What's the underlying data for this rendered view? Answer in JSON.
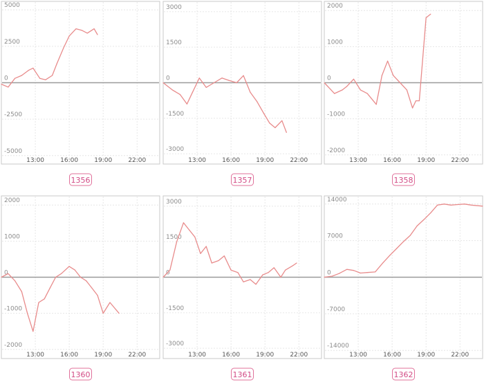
{
  "chart_data": [
    {
      "type": "line",
      "title": "1356",
      "ylim": [
        -5200,
        5200
      ],
      "yticks": [
        5000,
        2500,
        0,
        -2500,
        -5000
      ],
      "ytick_labels": [
        "5000",
        "2500",
        "0",
        "-2500",
        "-5000"
      ],
      "xlim": [
        10.0,
        24.0
      ],
      "xticks": [
        13,
        16,
        19,
        22
      ],
      "xtick_labels": [
        "13:00",
        "16:00",
        "19:00",
        "22:00"
      ],
      "grid": true,
      "series_color": "#e88b8b",
      "x": [
        10.0,
        10.6,
        11.2,
        11.8,
        12.4,
        12.8,
        13.4,
        13.9,
        14.5,
        14.9,
        15.5,
        16.0,
        16.6,
        17.1,
        17.6,
        18.2,
        18.5
      ],
      "values": [
        -100,
        -300,
        300,
        500,
        850,
        1000,
        300,
        200,
        500,
        1300,
        2400,
        3200,
        3700,
        3600,
        3400,
        3700,
        3300
      ]
    },
    {
      "type": "line",
      "title": "1357",
      "ylim": [
        -3200,
        3200
      ],
      "yticks": [
        3000,
        1500,
        0,
        -1500,
        -3000
      ],
      "ytick_labels": [
        "3000",
        "1500",
        "0",
        "-1500",
        "-3000"
      ],
      "xlim": [
        10.0,
        24.0
      ],
      "xticks": [
        13,
        16,
        19,
        22
      ],
      "xtick_labels": [
        "13:00",
        "16:00",
        "19:00",
        "22:00"
      ],
      "grid": true,
      "series_color": "#e88b8b",
      "x": [
        10.0,
        10.8,
        11.5,
        12.1,
        12.6,
        13.2,
        13.8,
        14.5,
        15.2,
        15.8,
        16.5,
        17.1,
        17.7,
        18.3,
        18.9,
        19.4,
        19.9,
        20.5,
        20.9
      ],
      "values": [
        0,
        -300,
        -500,
        -900,
        -400,
        200,
        -200,
        0,
        200,
        100,
        0,
        300,
        -400,
        -800,
        -1300,
        -1700,
        -1900,
        -1600,
        -2100
      ]
    },
    {
      "type": "line",
      "title": "1358",
      "ylim": [
        -2100,
        2100
      ],
      "yticks": [
        2000,
        1000,
        0,
        -1000,
        -2000
      ],
      "ytick_labels": [
        "2000",
        "1000",
        "0",
        "-1000",
        "-2000"
      ],
      "xlim": [
        10.0,
        24.0
      ],
      "xticks": [
        13,
        16,
        19,
        22
      ],
      "xtick_labels": [
        "13:00",
        "16:00",
        "19:00",
        "22:00"
      ],
      "grid": true,
      "series_color": "#e88b8b",
      "x": [
        10.0,
        10.9,
        11.6,
        12.0,
        12.6,
        13.2,
        13.8,
        14.6,
        15.1,
        15.6,
        16.1,
        16.7,
        17.3,
        17.8,
        18.1,
        18.4,
        19.0,
        19.4
      ],
      "values": [
        0,
        -300,
        -200,
        -100,
        100,
        -200,
        -300,
        -600,
        200,
        600,
        200,
        0,
        -200,
        -700,
        -500,
        -500,
        1800,
        1900
      ]
    },
    {
      "type": "line",
      "title": "1360",
      "ylim": [
        -2100,
        2100
      ],
      "yticks": [
        2000,
        1000,
        0,
        -1000,
        -2000
      ],
      "ytick_labels": [
        "2000",
        "1000",
        "0",
        "-1000",
        "-2000"
      ],
      "xlim": [
        10.0,
        24.0
      ],
      "xticks": [
        13,
        16,
        19,
        22
      ],
      "xtick_labels": [
        "13:00",
        "16:00",
        "19:00",
        "22:00"
      ],
      "grid": true,
      "series_color": "#e88b8b",
      "x": [
        10.0,
        10.6,
        11.2,
        11.8,
        12.3,
        12.8,
        13.3,
        13.8,
        14.3,
        14.8,
        15.3,
        16.0,
        16.5,
        17.0,
        17.5,
        18.0,
        18.5,
        19.0,
        19.6,
        20.4
      ],
      "values": [
        0,
        100,
        -100,
        -400,
        -1000,
        -1500,
        -700,
        -600,
        -300,
        0,
        100,
        300,
        200,
        0,
        -100,
        -300,
        -500,
        -1000,
        -700,
        -1000
      ]
    },
    {
      "type": "line",
      "title": "1361",
      "ylim": [
        -3200,
        3200
      ],
      "yticks": [
        3000,
        1500,
        0,
        -1500,
        -3000
      ],
      "ytick_labels": [
        "3000",
        "1500",
        "0",
        "-1500",
        "-3000"
      ],
      "xlim": [
        10.0,
        24.0
      ],
      "xticks": [
        13,
        16,
        19,
        22
      ],
      "xtick_labels": [
        "13:00",
        "16:00",
        "19:00",
        "22:00"
      ],
      "grid": true,
      "series_color": "#e88b8b",
      "x": [
        10.0,
        10.6,
        11.2,
        11.8,
        12.3,
        12.8,
        13.3,
        13.8,
        14.3,
        14.9,
        15.4,
        16.0,
        16.6,
        17.1,
        17.7,
        18.2,
        18.8,
        19.3,
        19.8,
        20.4,
        20.8,
        21.5,
        21.8
      ],
      "values": [
        0,
        300,
        1500,
        2300,
        2000,
        1700,
        1000,
        1300,
        600,
        700,
        900,
        300,
        200,
        -200,
        -100,
        -300,
        100,
        200,
        400,
        0,
        300,
        500,
        600
      ]
    },
    {
      "type": "line",
      "title": "1362",
      "ylim": [
        -14500,
        14500
      ],
      "yticks": [
        14000,
        7000,
        0,
        -7000,
        -14000
      ],
      "ytick_labels": [
        "14000",
        "7000",
        "0",
        "-7000",
        "-14000"
      ],
      "xlim": [
        10.0,
        24.0
      ],
      "xticks": [
        13,
        16,
        19,
        22
      ],
      "xtick_labels": [
        "13:00",
        "16:00",
        "19:00",
        "22:00"
      ],
      "grid": true,
      "series_color": "#e88b8b",
      "x": [
        10.0,
        10.7,
        11.3,
        12.0,
        12.6,
        13.2,
        13.8,
        14.5,
        15.2,
        15.8,
        16.4,
        17.0,
        17.6,
        18.2,
        18.8,
        19.4,
        20.0,
        20.6,
        21.2,
        21.8,
        22.4,
        23.0,
        24.0
      ],
      "values": [
        0,
        200,
        700,
        1500,
        1300,
        800,
        900,
        1000,
        2800,
        4200,
        5500,
        6800,
        8000,
        9800,
        11000,
        12300,
        13800,
        14000,
        13800,
        13900,
        14000,
        13800,
        13600
      ]
    }
  ]
}
